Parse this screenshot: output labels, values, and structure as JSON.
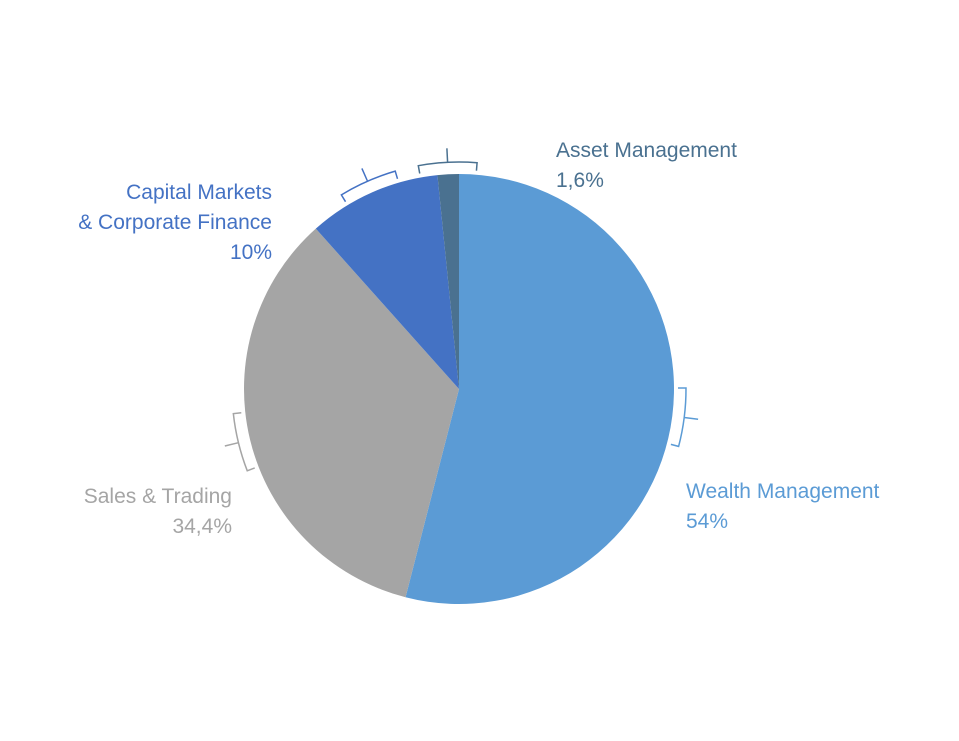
{
  "chart_data": {
    "type": "pie",
    "categories": [
      "Wealth Management",
      "Sales & Trading",
      "Capital Markets\n& Corporate Finance",
      "Asset Management"
    ],
    "values": [
      54,
      34.4,
      10,
      1.6
    ],
    "value_labels": [
      "54%",
      "34,4%",
      "10%",
      "1,6%"
    ],
    "colors": [
      "#5b9bd5",
      "#a5a5a5",
      "#4472c4",
      "#4a7190"
    ]
  }
}
